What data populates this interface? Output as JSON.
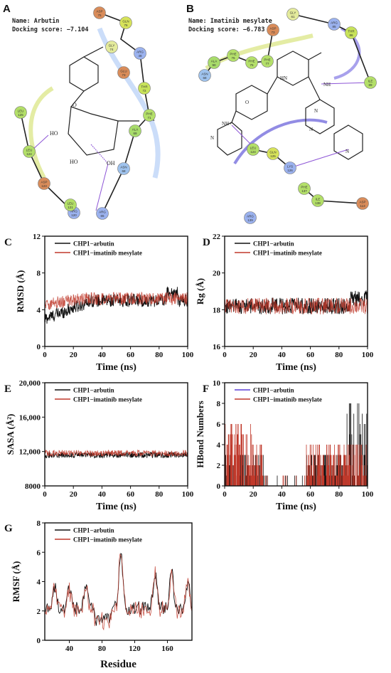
{
  "panel_a": {
    "letter": "A",
    "name": "Name: Arbutin",
    "score": "Docking score: −7.104",
    "residues": [
      "ASP 75",
      "GLN 76",
      "GLY 74",
      "ARG 48",
      "GLU 73",
      "THR 72",
      "PHE 71",
      "ALA 69",
      "ASN 68",
      "ARG 65",
      "ARG 120",
      "LEU 121",
      "ASP 123",
      "LEU 124",
      "LEU 125"
    ],
    "atoms": [
      "OH",
      "O",
      "HO",
      "HO",
      "OH",
      "OH"
    ]
  },
  "panel_b": {
    "letter": "B",
    "name": "Name: Imatinib mesylate",
    "score": "Docking score: −6.783",
    "residues": [
      "GLY 61",
      "ASP 73",
      "ARG 85",
      "THR 86",
      "ALA 90",
      "PHE 76",
      "PHE 77",
      "PHE 75",
      "ASN 68",
      "ILE 89",
      "LEU 124",
      "GLN 125",
      "LYS 126",
      "PHE 137",
      "ILE 138",
      "ARG 139",
      "ASP 113"
    ],
    "atoms": [
      "HN",
      "NH",
      "O",
      "N",
      "N",
      "NH+",
      "N",
      "N"
    ]
  },
  "colors": {
    "arbutin": "#111111",
    "imatinib": "#c0392b",
    "hbond_arbutin": "#5b3fd6"
  },
  "chart_data": [
    {
      "panel": "C",
      "type": "line",
      "series": [
        {
          "name": "CHP1−arbutin",
          "color": "#111111"
        },
        {
          "name": "CHP1−imatinib mesylate",
          "color": "#c0392b"
        }
      ],
      "xlabel": "Time (ns)",
      "ylabel": "RMSD (Å)",
      "xlim": [
        0,
        100
      ],
      "ylim": [
        0,
        12
      ],
      "xticks": [
        0,
        20,
        40,
        60,
        80,
        100
      ],
      "yticks": [
        0,
        4,
        8,
        12
      ],
      "summary": {
        "arbutin_mean": 5.0,
        "imatinib_mean": 5.1,
        "arbutin_peak": 6.6
      }
    },
    {
      "panel": "D",
      "type": "line",
      "series": [
        {
          "name": "CHP1−arbutin",
          "color": "#111111"
        },
        {
          "name": "CHP1−imatinib mesylate",
          "color": "#c0392b"
        }
      ],
      "xlabel": "Time (ns)",
      "ylabel": "Rg (Å)",
      "xlim": [
        0,
        100
      ],
      "ylim": [
        16,
        22
      ],
      "xticks": [
        0,
        20,
        40,
        60,
        80,
        100
      ],
      "yticks": [
        16,
        18,
        20,
        22
      ],
      "summary": {
        "arbutin_mean": 18.2,
        "imatinib_mean": 18.2
      }
    },
    {
      "panel": "E",
      "type": "line",
      "series": [
        {
          "name": "CHP1−arbutin",
          "color": "#111111"
        },
        {
          "name": "CHP1−imatinib mesylate",
          "color": "#c0392b"
        }
      ],
      "xlabel": "Time (ns)",
      "ylabel": "SASA (Å²)",
      "xlim": [
        0,
        100
      ],
      "ylim": [
        8000,
        20000
      ],
      "xticks": [
        0,
        20,
        40,
        60,
        80,
        100
      ],
      "yticks": [
        8000,
        12000,
        16000,
        20000
      ],
      "ytick_labels": [
        "8000",
        "12,000",
        "16,000",
        "20,000"
      ],
      "summary": {
        "arbutin_mean": 11600,
        "imatinib_mean": 11700
      }
    },
    {
      "panel": "F",
      "type": "bar",
      "series": [
        {
          "name": "CHP1−arbutin",
          "color": "#5b3fd6"
        },
        {
          "name": "CHP1−imatinib mesylate",
          "color": "#c0392b"
        }
      ],
      "xlabel": "Time (ns)",
      "ylabel": "HBond Numbers",
      "xlim": [
        0,
        100
      ],
      "ylim": [
        0,
        10
      ],
      "xticks": [
        0,
        20,
        40,
        60,
        80,
        100
      ],
      "yticks": [
        0,
        2,
        4,
        6,
        8,
        10
      ],
      "summary": {
        "arbutin_max": 8,
        "imatinib_max": 6
      }
    },
    {
      "panel": "G",
      "type": "line",
      "series": [
        {
          "name": "CHP1−arbutin",
          "color": "#111111"
        },
        {
          "name": "CHP1−imatinib mesylate",
          "color": "#c0392b"
        }
      ],
      "xlabel": "Residue",
      "ylabel": "RMSF (Å)",
      "xlim": [
        10,
        190
      ],
      "ylim": [
        0,
        8
      ],
      "xticks": [
        40,
        80,
        120,
        160
      ],
      "yticks": [
        0,
        2,
        4,
        6,
        8
      ],
      "peaks": [
        {
          "x": 103,
          "y": 6.3
        },
        {
          "x": 145,
          "y": 4.7
        },
        {
          "x": 165,
          "y": 4.8
        }
      ]
    }
  ]
}
